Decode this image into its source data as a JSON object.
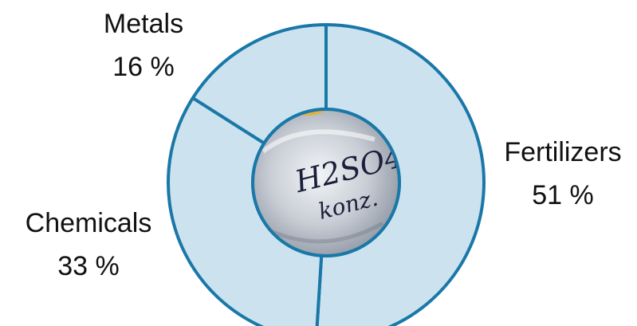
{
  "chart_data": {
    "type": "pie",
    "categories": [
      "Fertilizers",
      "Chemicals",
      "Metals"
    ],
    "values": [
      51,
      33,
      16
    ],
    "value_labels": [
      "51 %",
      "33 %",
      "16 %"
    ],
    "colors": {
      "slice_fill": "#cce3ef",
      "slice_stroke": "#1a78a8",
      "inset_ring": "#1a78a8"
    },
    "inner_image_text": [
      "H2SO4",
      "konz."
    ],
    "legend": "none"
  }
}
